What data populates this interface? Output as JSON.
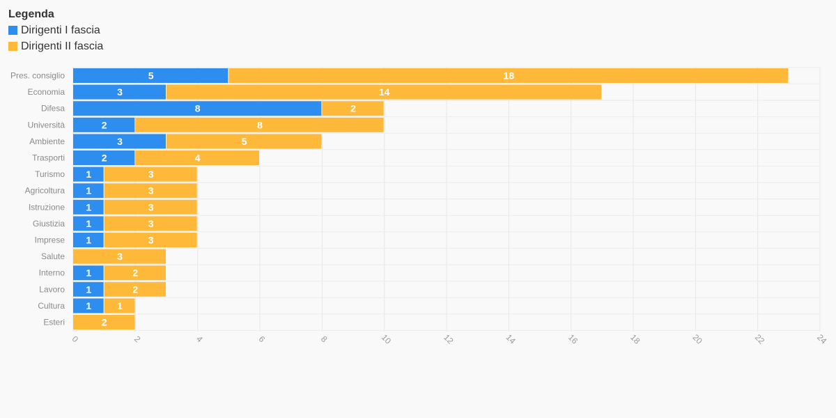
{
  "legend": {
    "title": "Legenda",
    "items": [
      {
        "label": "Dirigenti I fascia",
        "color": "#2e8ef0"
      },
      {
        "label": "Dirigenti II fascia",
        "color": "#ffb93a"
      }
    ]
  },
  "chart_data": {
    "type": "bar",
    "orientation": "horizontal",
    "stacked": true,
    "categories": [
      "Pres. consiglio",
      "Economia",
      "Difesa",
      "Università",
      "Ambiente",
      "Trasporti",
      "Turismo",
      "Agricoltura",
      "Istruzione",
      "Giustizia",
      "Imprese",
      "Salute",
      "Interno",
      "Lavoro",
      "Cultura",
      "Esteri"
    ],
    "series": [
      {
        "name": "Dirigenti I fascia",
        "color": "#2e8ef0",
        "values": [
          5,
          3,
          8,
          2,
          3,
          2,
          1,
          1,
          1,
          1,
          1,
          0,
          1,
          1,
          1,
          0
        ]
      },
      {
        "name": "Dirigenti II fascia",
        "color": "#ffb93a",
        "values": [
          18,
          14,
          2,
          8,
          5,
          4,
          3,
          3,
          3,
          3,
          3,
          3,
          2,
          2,
          1,
          2
        ]
      }
    ],
    "xlim": [
      0,
      24
    ],
    "xticks": [
      0,
      2,
      4,
      6,
      8,
      10,
      12,
      14,
      16,
      18,
      20,
      22,
      24
    ],
    "grid": true,
    "legend_position": "top-left"
  }
}
